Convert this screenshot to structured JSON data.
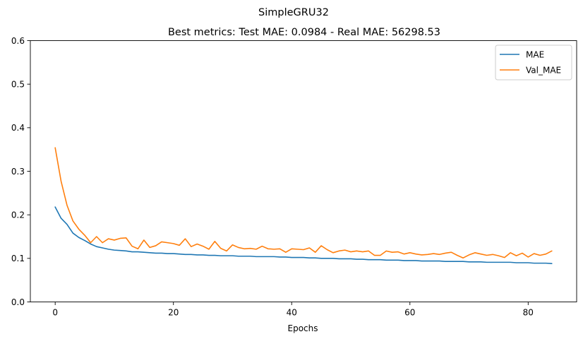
{
  "chart_data": {
    "type": "line",
    "suptitle": "SimpleGRU32",
    "title": "Best metrics: Test MAE: 0.0984 - Real MAE: 56298.53",
    "xlabel": "Epochs",
    "ylabel": "",
    "xlim": [
      -4.2,
      88.2
    ],
    "ylim": [
      0.0,
      0.6
    ],
    "xticks": [
      0,
      20,
      40,
      60,
      80
    ],
    "yticks": [
      0.0,
      0.1,
      0.2,
      0.3,
      0.4,
      0.5,
      0.6
    ],
    "ytick_labels": [
      "0.0",
      "0.1",
      "0.2",
      "0.3",
      "0.4",
      "0.5",
      "0.6"
    ],
    "grid": false,
    "legend_position": "top-right",
    "x": [
      0,
      1,
      2,
      3,
      4,
      5,
      6,
      7,
      8,
      9,
      10,
      11,
      12,
      13,
      14,
      15,
      16,
      17,
      18,
      19,
      20,
      21,
      22,
      23,
      24,
      25,
      26,
      27,
      28,
      29,
      30,
      31,
      32,
      33,
      34,
      35,
      36,
      37,
      38,
      39,
      40,
      41,
      42,
      43,
      44,
      45,
      46,
      47,
      48,
      49,
      50,
      51,
      52,
      53,
      54,
      55,
      56,
      57,
      58,
      59,
      60,
      61,
      62,
      63,
      64,
      65,
      66,
      67,
      68,
      69,
      70,
      71,
      72,
      73,
      74,
      75,
      76,
      77,
      78,
      79,
      80,
      81,
      82,
      83,
      84
    ],
    "series": [
      {
        "name": "MAE",
        "color": "#1f77b4",
        "values": [
          0.218,
          0.192,
          0.178,
          0.158,
          0.148,
          0.141,
          0.133,
          0.127,
          0.124,
          0.121,
          0.119,
          0.118,
          0.117,
          0.115,
          0.115,
          0.114,
          0.113,
          0.112,
          0.112,
          0.111,
          0.111,
          0.11,
          0.109,
          0.109,
          0.108,
          0.108,
          0.107,
          0.107,
          0.106,
          0.106,
          0.106,
          0.105,
          0.105,
          0.105,
          0.104,
          0.104,
          0.104,
          0.104,
          0.103,
          0.103,
          0.102,
          0.102,
          0.102,
          0.101,
          0.101,
          0.1,
          0.1,
          0.1,
          0.099,
          0.099,
          0.099,
          0.098,
          0.098,
          0.097,
          0.097,
          0.097,
          0.096,
          0.096,
          0.096,
          0.095,
          0.095,
          0.095,
          0.094,
          0.094,
          0.094,
          0.094,
          0.093,
          0.093,
          0.093,
          0.093,
          0.092,
          0.092,
          0.092,
          0.091,
          0.091,
          0.091,
          0.091,
          0.091,
          0.09,
          0.09,
          0.09,
          0.089,
          0.089,
          0.089,
          0.088
        ]
      },
      {
        "name": "Val_MAE",
        "color": "#ff7f0e",
        "values": [
          0.354,
          0.277,
          0.222,
          0.186,
          0.167,
          0.153,
          0.136,
          0.15,
          0.136,
          0.145,
          0.142,
          0.146,
          0.147,
          0.128,
          0.122,
          0.142,
          0.125,
          0.129,
          0.138,
          0.136,
          0.134,
          0.13,
          0.145,
          0.127,
          0.133,
          0.128,
          0.121,
          0.139,
          0.123,
          0.117,
          0.131,
          0.125,
          0.122,
          0.123,
          0.121,
          0.128,
          0.122,
          0.121,
          0.122,
          0.114,
          0.122,
          0.121,
          0.12,
          0.124,
          0.114,
          0.129,
          0.12,
          0.113,
          0.117,
          0.119,
          0.115,
          0.117,
          0.115,
          0.117,
          0.107,
          0.107,
          0.117,
          0.114,
          0.115,
          0.11,
          0.113,
          0.11,
          0.108,
          0.109,
          0.111,
          0.109,
          0.112,
          0.114,
          0.107,
          0.101,
          0.108,
          0.113,
          0.11,
          0.107,
          0.109,
          0.106,
          0.102,
          0.113,
          0.106,
          0.112,
          0.103,
          0.111,
          0.107,
          0.11,
          0.117
        ]
      }
    ]
  }
}
